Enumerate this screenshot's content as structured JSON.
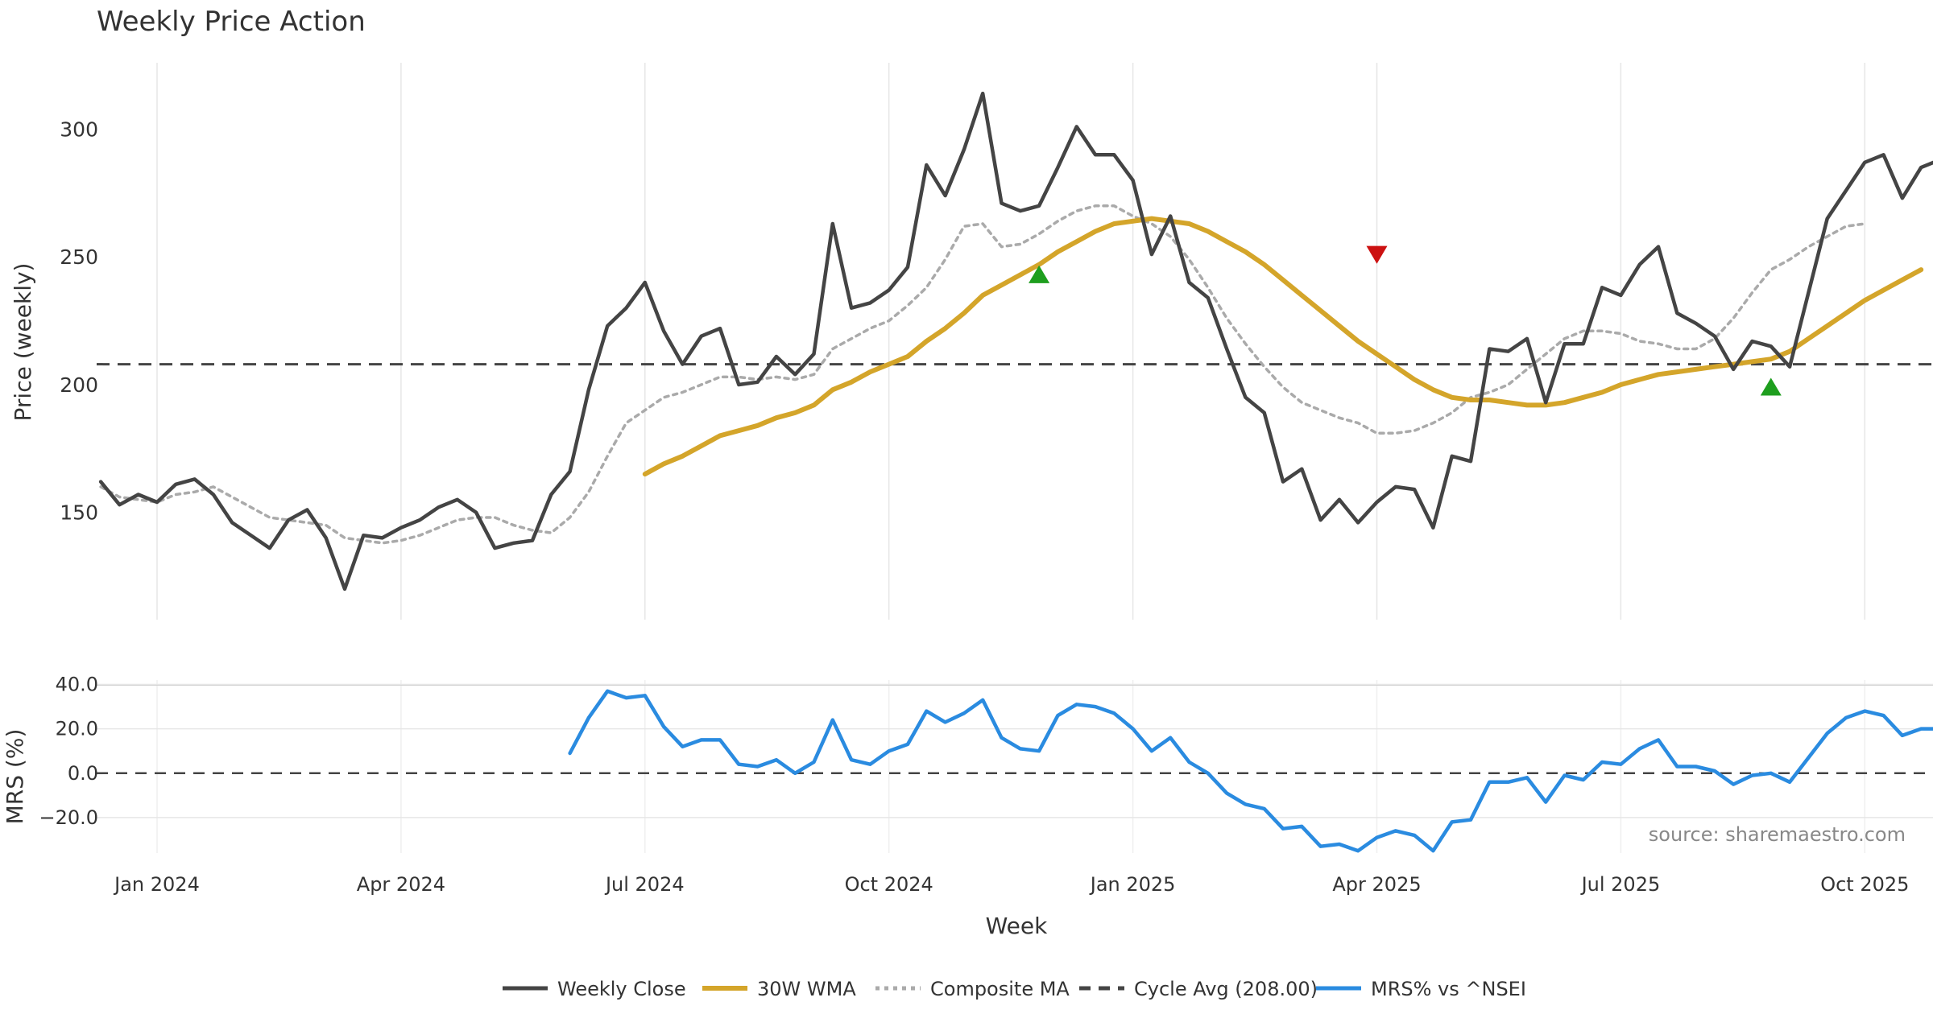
{
  "chart_data": {
    "type": "line",
    "title": "Weekly Price Action",
    "source_note": "source: sharemaestro.com",
    "xlabel": "Week",
    "x_ticks": [
      "Jan 2024",
      "Apr 2024",
      "Jul 2024",
      "Oct 2024",
      "Jan 2025",
      "Apr 2025",
      "Jul 2025",
      "Oct 2025"
    ],
    "x_tick_index": [
      0,
      13,
      26,
      39,
      52,
      65,
      78,
      91
    ],
    "price_panel": {
      "ylabel": "Price (weekly)",
      "ylim": [
        108,
        326
      ],
      "y_ticks": [
        150,
        200,
        250,
        300
      ],
      "y_tick_labels": [
        "150",
        "200",
        "250",
        "300"
      ],
      "cycle_avg": 208.0,
      "series": [
        {
          "name": "Weekly Close",
          "color": "#444444",
          "start": -3,
          "values": [
            162,
            153,
            157,
            154,
            161,
            163,
            157,
            146,
            141,
            136,
            147,
            151,
            140,
            120,
            141,
            140,
            144,
            147,
            152,
            155,
            150,
            136,
            138,
            139,
            157,
            166,
            198,
            223,
            230,
            240,
            221,
            208,
            219,
            222,
            200,
            201,
            211,
            204,
            212,
            263,
            230,
            232,
            237,
            246,
            286,
            274,
            292,
            314,
            271,
            268,
            270,
            285,
            301,
            290,
            290,
            280,
            251,
            266,
            240,
            234,
            214,
            195,
            189,
            162,
            167,
            147,
            155,
            146,
            154,
            160,
            159,
            144,
            172,
            170,
            214,
            213,
            218,
            193,
            216,
            216,
            238,
            235,
            247,
            254,
            228,
            224,
            219,
            206,
            217,
            215,
            207,
            236,
            265,
            276,
            287,
            290,
            273,
            285,
            288
          ]
        },
        {
          "name": "30W WMA",
          "color": "#D4A52A",
          "start": 26,
          "values": [
            165,
            169,
            172,
            176,
            180,
            182,
            184,
            187,
            189,
            192,
            198,
            201,
            205,
            208,
            211,
            217,
            222,
            228,
            235,
            239,
            243,
            247,
            252,
            256,
            260,
            263,
            264,
            265,
            264,
            263,
            260,
            256,
            252,
            247,
            241,
            235,
            229,
            223,
            217,
            212,
            207,
            202,
            198,
            195,
            194,
            194,
            193,
            192,
            192,
            193,
            195,
            197,
            200,
            202,
            204,
            205,
            206,
            207,
            208,
            209,
            210,
            213,
            218,
            223,
            228,
            233,
            237,
            241,
            245
          ]
        },
        {
          "name": "Composite MA",
          "color": "#AAAAAA",
          "start": -3,
          "values": [
            160,
            156,
            155,
            154,
            157,
            158,
            160,
            156,
            152,
            148,
            147,
            146,
            145,
            140,
            139,
            138,
            139,
            141,
            144,
            147,
            148,
            148,
            145,
            143,
            142,
            148,
            158,
            172,
            185,
            190,
            195,
            197,
            200,
            203,
            203,
            202,
            203,
            202,
            204,
            214,
            218,
            222,
            225,
            231,
            238,
            249,
            262,
            263,
            254,
            255,
            259,
            264,
            268,
            270,
            270,
            266,
            263,
            258,
            249,
            238,
            226,
            216,
            207,
            199,
            193,
            190,
            187,
            185,
            181,
            181,
            182,
            185,
            189,
            195,
            197,
            200,
            206,
            212,
            218,
            221,
            221,
            220,
            217,
            216,
            214,
            214,
            218,
            226,
            236,
            245,
            249,
            254,
            258,
            262,
            263
          ]
        }
      ],
      "markers": [
        {
          "type": "buy",
          "index": 47,
          "value": 243,
          "color": "#1E9E1E"
        },
        {
          "type": "sell",
          "index": 65,
          "value": 251,
          "color": "#CC1111"
        },
        {
          "type": "buy",
          "index": 86,
          "value": 199,
          "color": "#1E9E1E"
        }
      ]
    },
    "mrs_panel": {
      "ylabel": "MRS (%)",
      "ylim": [
        -36,
        42
      ],
      "y_ticks": [
        40,
        20,
        0,
        -20
      ],
      "y_tick_labels": [
        "40.0",
        "20.0",
        "0.0",
        "−20.0"
      ],
      "series": [
        {
          "name": "MRS% vs ^NSEI",
          "color": "#2A8BE0",
          "start": 22,
          "values": [
            9,
            25,
            37,
            34,
            35,
            21,
            12,
            15,
            15,
            4,
            3,
            6,
            0,
            5,
            24,
            6,
            4,
            10,
            13,
            28,
            23,
            27,
            33,
            16,
            11,
            10,
            26,
            31,
            30,
            27,
            20,
            10,
            16,
            5,
            0,
            -9,
            -14,
            -16,
            -25,
            -24,
            -33,
            -32,
            -35,
            -29,
            -26,
            -28,
            -35,
            -22,
            -21,
            -4,
            -4,
            -2,
            -13,
            -1,
            -3,
            5,
            4,
            11,
            15,
            3,
            3,
            1,
            -5,
            -1,
            0,
            -4,
            7,
            18,
            25,
            28,
            26,
            17,
            20,
            20
          ]
        }
      ]
    },
    "legend": [
      {
        "label": "Weekly Close",
        "color": "#444444",
        "style": "solid"
      },
      {
        "label": "30W WMA",
        "color": "#D4A52A",
        "style": "solid"
      },
      {
        "label": "Composite MA",
        "color": "#AAAAAA",
        "style": "dotted"
      },
      {
        "label": "Cycle Avg (208.00)",
        "color": "#444444",
        "style": "dashed"
      },
      {
        "label": "MRS% vs ^NSEI",
        "color": "#2A8BE0",
        "style": "solid"
      }
    ],
    "legend_position": "bottom-center"
  }
}
